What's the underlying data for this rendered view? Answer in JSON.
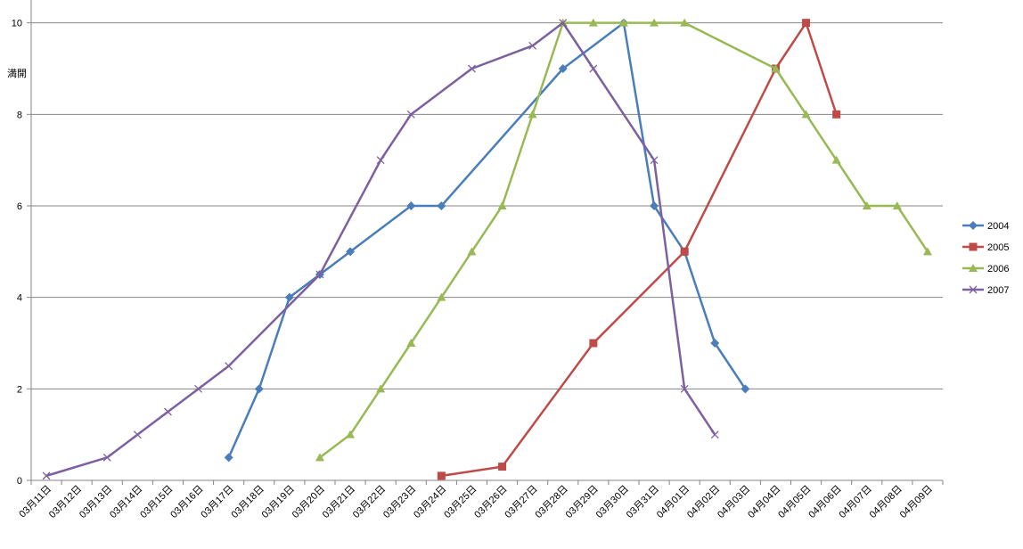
{
  "chart_data": {
    "type": "line",
    "annotation": "満開",
    "categories": [
      "03月11日",
      "03月12日",
      "03月13日",
      "03月14日",
      "03月15日",
      "03月16日",
      "03月17日",
      "03月18日",
      "03月19日",
      "03月20日",
      "03月21日",
      "03月22日",
      "03月23日",
      "03月24日",
      "03月25日",
      "03月26日",
      "03月27日",
      "03月28日",
      "03月29日",
      "03月30日",
      "03月31日",
      "04月01日",
      "04月02日",
      "04月03日",
      "04月04日",
      "04月05日",
      "04月06日",
      "04月07日",
      "04月08日",
      "04月09日"
    ],
    "series": [
      {
        "name": "2004",
        "color": "#4a7ebb",
        "marker": "diamond",
        "x": [
          "03月17日",
          "03月18日",
          "03月19日",
          "03月20日",
          "03月21日",
          "03月23日",
          "03月24日",
          "03月28日",
          "03月30日",
          "03月31日",
          "04月01日",
          "04月02日",
          "04月03日"
        ],
        "values": [
          0.5,
          2,
          4,
          4.5,
          5,
          6,
          6,
          9,
          10,
          6,
          5,
          3,
          2
        ]
      },
      {
        "name": "2005",
        "color": "#be4b48",
        "marker": "square",
        "x": [
          "03月24日",
          "03月26日",
          "03月29日",
          "04月01日",
          "04月04日",
          "04月05日",
          "04月06日"
        ],
        "values": [
          0.1,
          0.3,
          3,
          5,
          9,
          10,
          8
        ]
      },
      {
        "name": "2006",
        "color": "#98b954",
        "marker": "triangle",
        "x": [
          "03月20日",
          "03月21日",
          "03月22日",
          "03月23日",
          "03月24日",
          "03月25日",
          "03月26日",
          "03月27日",
          "03月28日",
          "03月29日",
          "03月30日",
          "03月31日",
          "04月01日",
          "04月04日",
          "04月05日",
          "04月06日",
          "04月07日",
          "04月08日",
          "04月09日"
        ],
        "values": [
          0.5,
          1,
          2,
          3,
          4,
          5,
          6,
          8,
          10,
          10,
          10,
          10,
          10,
          9,
          8,
          7,
          6,
          6,
          5
        ]
      },
      {
        "name": "2007",
        "color": "#7d60a0",
        "marker": "x",
        "x": [
          "03月11日",
          "03月13日",
          "03月14日",
          "03月15日",
          "03月16日",
          "03月17日",
          "03月20日",
          "03月22日",
          "03月23日",
          "03月25日",
          "03月27日",
          "03月28日",
          "03月29日",
          "03月31日",
          "04月01日",
          "04月02日"
        ],
        "values": [
          0.1,
          0.5,
          1,
          1.5,
          2,
          2.5,
          4.5,
          7,
          8,
          9,
          9.5,
          10,
          9,
          7,
          2,
          1
        ]
      }
    ],
    "ylim": [
      0,
      10.5
    ],
    "yticks": [
      0,
      2,
      4,
      6,
      8,
      10
    ],
    "grid": true,
    "legend": "right"
  }
}
